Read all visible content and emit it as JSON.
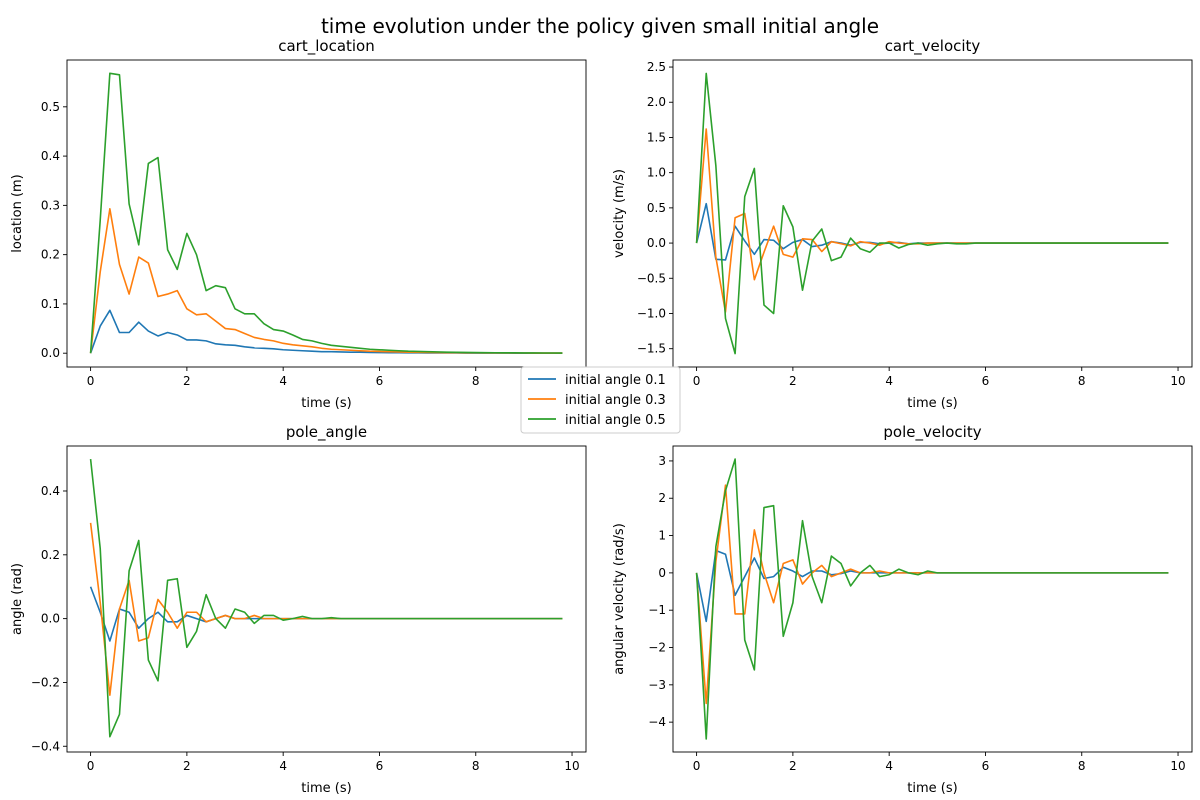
{
  "figure": {
    "title": "time evolution under the policy given small initial angle"
  },
  "colors": {
    "initial angle 0.1": "#1f77b4",
    "initial angle 0.3": "#ff7f0e",
    "initial angle 0.5": "#2ca02c"
  },
  "legend": {
    "placement": "center",
    "entries": [
      "initial angle 0.1",
      "initial angle 0.3",
      "initial angle 0.5"
    ]
  },
  "chart_data": [
    {
      "type": "line",
      "title": "cart_location",
      "xlabel": "time (s)",
      "ylabel": "location (m)",
      "xlim": [
        -0.49,
        10.29
      ],
      "ylim": [
        -0.028,
        0.595
      ],
      "xticks": [
        0,
        2,
        4,
        6,
        8
      ],
      "xtick_labels": [
        "0",
        "2",
        "4",
        "6",
        "8"
      ],
      "yticks": [
        0.0,
        0.1,
        0.2,
        0.3,
        0.4,
        0.5
      ],
      "ytick_labels": [
        "0.0",
        "0.1",
        "0.2",
        "0.3",
        "0.4",
        "0.5"
      ],
      "x": [
        0,
        0.2,
        0.4,
        0.6,
        0.8,
        1.0,
        1.2,
        1.4,
        1.6,
        1.8,
        2.0,
        2.2,
        2.4,
        2.6,
        2.8,
        3.0,
        3.2,
        3.4,
        3.6,
        3.8,
        4.0,
        4.2,
        4.4,
        4.6,
        4.8,
        5.0,
        5.2,
        5.4,
        5.6,
        5.8,
        6.0,
        6.2,
        6.4,
        6.6,
        6.8,
        7.0,
        7.2,
        7.4,
        7.6,
        7.8,
        8.0,
        8.2,
        8.4,
        8.6,
        8.8,
        9.0,
        9.2,
        9.4,
        9.6,
        9.8
      ],
      "series": [
        {
          "name": "initial angle 0.1",
          "values": [
            0.0,
            0.055,
            0.087,
            0.042,
            0.042,
            0.063,
            0.045,
            0.035,
            0.042,
            0.037,
            0.027,
            0.027,
            0.025,
            0.019,
            0.017,
            0.016,
            0.013,
            0.011,
            0.01,
            0.009,
            0.007,
            0.006,
            0.005,
            0.004,
            0.003,
            0.003,
            0.0025,
            0.002,
            0.002,
            0.0015,
            0.0012,
            0.001,
            0.001,
            0.0008,
            0.0007,
            0.0006,
            0.0005,
            0.0004,
            0.0004,
            0.0003,
            0.0003,
            0.0002,
            0.0002,
            0.0002,
            0.0001,
            0.0001,
            0.0001,
            0.0001,
            0.0001,
            0.0001
          ]
        },
        {
          "name": "initial angle 0.3",
          "values": [
            0.0,
            0.165,
            0.293,
            0.18,
            0.12,
            0.195,
            0.183,
            0.115,
            0.12,
            0.127,
            0.09,
            0.078,
            0.08,
            0.065,
            0.05,
            0.048,
            0.04,
            0.032,
            0.028,
            0.025,
            0.02,
            0.017,
            0.015,
            0.013,
            0.01,
            0.008,
            0.007,
            0.006,
            0.005,
            0.004,
            0.0035,
            0.003,
            0.0025,
            0.002,
            0.0018,
            0.0015,
            0.0013,
            0.0011,
            0.001,
            0.0008,
            0.0007,
            0.0006,
            0.0005,
            0.0005,
            0.0004,
            0.0004,
            0.0003,
            0.0003,
            0.0003,
            0.0002
          ]
        },
        {
          "name": "initial angle 0.5",
          "values": [
            0.0,
            0.27,
            0.568,
            0.565,
            0.303,
            0.22,
            0.385,
            0.397,
            0.21,
            0.17,
            0.243,
            0.2,
            0.127,
            0.137,
            0.133,
            0.09,
            0.08,
            0.08,
            0.06,
            0.048,
            0.045,
            0.037,
            0.028,
            0.025,
            0.02,
            0.016,
            0.014,
            0.012,
            0.01,
            0.008,
            0.007,
            0.006,
            0.005,
            0.004,
            0.0035,
            0.003,
            0.0025,
            0.002,
            0.0018,
            0.0015,
            0.0012,
            0.001,
            0.0009,
            0.0008,
            0.0007,
            0.0006,
            0.0005,
            0.0004,
            0.0004,
            0.0003
          ]
        }
      ]
    },
    {
      "type": "line",
      "title": "cart_velocity",
      "xlabel": "time (s)",
      "ylabel": "velocity (m/s)",
      "xlim": [
        -0.49,
        10.29
      ],
      "ylim": [
        -1.76,
        2.6
      ],
      "xticks": [
        0,
        2,
        4,
        6,
        8,
        10
      ],
      "xtick_labels": [
        "0",
        "2",
        "4",
        "6",
        "8",
        "10"
      ],
      "yticks": [
        -1.5,
        -1.0,
        -0.5,
        0.0,
        0.5,
        1.0,
        1.5,
        2.0,
        2.5
      ],
      "ytick_labels": [
        "−1.5",
        "−1.0",
        "−0.5",
        "0.0",
        "0.5",
        "1.0",
        "1.5",
        "2.0",
        "2.5"
      ],
      "x": [
        0,
        0.2,
        0.4,
        0.6,
        0.8,
        1.0,
        1.2,
        1.4,
        1.6,
        1.8,
        2.0,
        2.2,
        2.4,
        2.6,
        2.8,
        3.0,
        3.2,
        3.4,
        3.6,
        3.8,
        4.0,
        4.2,
        4.4,
        4.6,
        4.8,
        5.0,
        5.2,
        5.4,
        5.6,
        5.8,
        6.0,
        6.2,
        6.4,
        6.6,
        6.8,
        7.0,
        7.2,
        7.4,
        7.6,
        7.8,
        8.0,
        8.2,
        8.4,
        8.6,
        8.8,
        9.0,
        9.2,
        9.4,
        9.6,
        9.8
      ],
      "series": [
        {
          "name": "initial angle 0.1",
          "values": [
            0.0,
            0.56,
            -0.23,
            -0.24,
            0.24,
            0.03,
            -0.16,
            0.05,
            0.04,
            -0.08,
            0.01,
            0.05,
            -0.05,
            -0.03,
            0.02,
            0.0,
            -0.03,
            0.01,
            0.01,
            -0.01,
            0.0,
            0.01,
            -0.01,
            0.0,
            0.0,
            0.0,
            0.0,
            0.0,
            0.0,
            0.0,
            0.0,
            0.0,
            0.0,
            0.0,
            0.0,
            0.0,
            0.0,
            0.0,
            0.0,
            0.0,
            0.0,
            0.0,
            0.0,
            0.0,
            0.0,
            0.0,
            0.0,
            0.0,
            0.0,
            0.0
          ]
        },
        {
          "name": "initial angle 0.3",
          "values": [
            0.0,
            1.62,
            -0.2,
            -0.98,
            0.36,
            0.42,
            -0.52,
            -0.13,
            0.24,
            -0.16,
            -0.2,
            0.06,
            0.05,
            -0.12,
            0.02,
            -0.01,
            -0.04,
            0.02,
            0.0,
            -0.03,
            0.02,
            0.0,
            -0.01,
            -0.01,
            0.0,
            0.0,
            0.0,
            0.0,
            0.0,
            0.0,
            0.0,
            0.0,
            0.0,
            0.0,
            0.0,
            0.0,
            0.0,
            0.0,
            0.0,
            0.0,
            0.0,
            0.0,
            0.0,
            0.0,
            0.0,
            0.0,
            0.0,
            0.0,
            0.0,
            0.0
          ]
        },
        {
          "name": "initial angle 0.5",
          "values": [
            0.0,
            2.41,
            1.1,
            -1.07,
            -1.57,
            0.66,
            1.06,
            -0.88,
            -1.0,
            0.53,
            0.23,
            -0.67,
            0.03,
            0.2,
            -0.25,
            -0.2,
            0.07,
            -0.08,
            -0.13,
            0.0,
            0.0,
            -0.07,
            -0.02,
            0.0,
            -0.03,
            -0.01,
            0.0,
            -0.01,
            -0.01,
            0.0,
            0.0,
            0.0,
            0.0,
            0.0,
            0.0,
            0.0,
            0.0,
            0.0,
            0.0,
            0.0,
            0.0,
            0.0,
            0.0,
            0.0,
            0.0,
            0.0,
            0.0,
            0.0,
            0.0,
            0.0
          ]
        }
      ]
    },
    {
      "type": "line",
      "title": "pole_angle",
      "xlabel": "time (s)",
      "ylabel": "angle (rad)",
      "xlim": [
        -0.49,
        10.29
      ],
      "ylim": [
        -0.418,
        0.541
      ],
      "xticks": [
        0,
        2,
        4,
        6,
        8,
        10
      ],
      "xtick_labels": [
        "0",
        "2",
        "4",
        "6",
        "8",
        "10"
      ],
      "yticks": [
        -0.4,
        -0.2,
        0.0,
        0.2,
        0.4
      ],
      "ytick_labels": [
        "−0.4",
        "−0.2",
        "0.0",
        "0.2",
        "0.4"
      ],
      "x": [
        0,
        0.2,
        0.4,
        0.6,
        0.8,
        1.0,
        1.2,
        1.4,
        1.6,
        1.8,
        2.0,
        2.2,
        2.4,
        2.6,
        2.8,
        3.0,
        3.2,
        3.4,
        3.6,
        3.8,
        4.0,
        4.2,
        4.4,
        4.6,
        4.8,
        5.0,
        5.2,
        5.4,
        5.6,
        5.8,
        6.0,
        6.2,
        6.4,
        6.6,
        6.8,
        7.0,
        7.2,
        7.4,
        7.6,
        7.8,
        8.0,
        8.2,
        8.4,
        8.6,
        8.8,
        9.0,
        9.2,
        9.4,
        9.6,
        9.8
      ],
      "series": [
        {
          "name": "initial angle 0.1",
          "values": [
            0.1,
            0.02,
            -0.07,
            0.03,
            0.02,
            -0.03,
            0.0,
            0.02,
            -0.01,
            -0.01,
            0.01,
            0.0,
            -0.01,
            0.0,
            0.01,
            0.0,
            0.0,
            0.0,
            0.0,
            0.0,
            0.0,
            0.0,
            0.0,
            0.0,
            0.0,
            0.0,
            0.0,
            0.0,
            0.0,
            0.0,
            0.0,
            0.0,
            0.0,
            0.0,
            0.0,
            0.0,
            0.0,
            0.0,
            0.0,
            0.0,
            0.0,
            0.0,
            0.0,
            0.0,
            0.0,
            0.0,
            0.0,
            0.0,
            0.0,
            0.0
          ]
        },
        {
          "name": "initial angle 0.3",
          "values": [
            0.3,
            0.05,
            -0.24,
            0.03,
            0.12,
            -0.07,
            -0.06,
            0.06,
            0.02,
            -0.03,
            0.02,
            0.02,
            -0.01,
            0.0,
            0.01,
            0.0,
            0.0,
            0.01,
            0.0,
            0.0,
            0.0,
            0.0,
            0.0,
            0.0,
            0.0,
            0.0,
            0.0,
            0.0,
            0.0,
            0.0,
            0.0,
            0.0,
            0.0,
            0.0,
            0.0,
            0.0,
            0.0,
            0.0,
            0.0,
            0.0,
            0.0,
            0.0,
            0.0,
            0.0,
            0.0,
            0.0,
            0.0,
            0.0,
            0.0,
            0.0
          ]
        },
        {
          "name": "initial angle 0.5",
          "values": [
            0.5,
            0.22,
            -0.37,
            -0.3,
            0.15,
            0.245,
            -0.13,
            -0.195,
            0.12,
            0.125,
            -0.09,
            -0.04,
            0.075,
            0.0,
            -0.03,
            0.03,
            0.02,
            -0.015,
            0.01,
            0.01,
            -0.005,
            0.0,
            0.007,
            0.0,
            0.0,
            0.003,
            0.0,
            0.0,
            0.0,
            0.0,
            0.0,
            0.0,
            0.0,
            0.0,
            0.0,
            0.0,
            0.0,
            0.0,
            0.0,
            0.0,
            0.0,
            0.0,
            0.0,
            0.0,
            0.0,
            0.0,
            0.0,
            0.0,
            0.0,
            0.0
          ]
        }
      ]
    },
    {
      "type": "line",
      "title": "pole_velocity",
      "xlabel": "time (s)",
      "ylabel": "angular velocity (rad/s)",
      "xlim": [
        -0.49,
        10.29
      ],
      "ylim": [
        -4.8,
        3.4
      ],
      "xticks": [
        0,
        2,
        4,
        6,
        8,
        10
      ],
      "xtick_labels": [
        "0",
        "2",
        "4",
        "6",
        "8",
        "10"
      ],
      "yticks": [
        -4,
        -3,
        -2,
        -1,
        0,
        1,
        2,
        3
      ],
      "ytick_labels": [
        "−4",
        "−3",
        "−2",
        "−1",
        "0",
        "1",
        "2",
        "3"
      ],
      "x": [
        0,
        0.2,
        0.4,
        0.6,
        0.8,
        1.0,
        1.2,
        1.4,
        1.6,
        1.8,
        2.0,
        2.2,
        2.4,
        2.6,
        2.8,
        3.0,
        3.2,
        3.4,
        3.6,
        3.8,
        4.0,
        4.2,
        4.4,
        4.6,
        4.8,
        5.0,
        5.2,
        5.4,
        5.6,
        5.8,
        6.0,
        6.2,
        6.4,
        6.6,
        6.8,
        7.0,
        7.2,
        7.4,
        7.6,
        7.8,
        8.0,
        8.2,
        8.4,
        8.6,
        8.8,
        9.0,
        9.2,
        9.4,
        9.6,
        9.8
      ],
      "series": [
        {
          "name": "initial angle 0.1",
          "values": [
            0.0,
            -1.3,
            0.6,
            0.5,
            -0.6,
            -0.1,
            0.4,
            -0.15,
            -0.1,
            0.15,
            0.05,
            -0.1,
            0.05,
            0.05,
            -0.05,
            -0.02,
            0.05,
            0.0,
            0.0,
            0.0,
            0.0,
            0.0,
            0.0,
            0.0,
            0.0,
            0.0,
            0.0,
            0.0,
            0.0,
            0.0,
            0.0,
            0.0,
            0.0,
            0.0,
            0.0,
            0.0,
            0.0,
            0.0,
            0.0,
            0.0,
            0.0,
            0.0,
            0.0,
            0.0,
            0.0,
            0.0,
            0.0,
            0.0,
            0.0,
            0.0
          ]
        },
        {
          "name": "initial angle 0.3",
          "values": [
            0.0,
            -3.5,
            0.3,
            2.35,
            -1.1,
            -1.1,
            1.15,
            0.0,
            -0.8,
            0.25,
            0.35,
            -0.3,
            0.0,
            0.2,
            -0.1,
            0.0,
            0.1,
            0.0,
            0.0,
            0.05,
            0.0,
            0.0,
            0.0,
            0.0,
            0.0,
            0.0,
            0.0,
            0.0,
            0.0,
            0.0,
            0.0,
            0.0,
            0.0,
            0.0,
            0.0,
            0.0,
            0.0,
            0.0,
            0.0,
            0.0,
            0.0,
            0.0,
            0.0,
            0.0,
            0.0,
            0.0,
            0.0,
            0.0,
            0.0,
            0.0
          ]
        },
        {
          "name": "initial angle 0.5",
          "values": [
            0.0,
            -4.45,
            0.7,
            2.2,
            3.05,
            -1.8,
            -2.6,
            1.75,
            1.8,
            -1.7,
            -0.8,
            1.4,
            -0.1,
            -0.8,
            0.45,
            0.25,
            -0.35,
            0.0,
            0.2,
            -0.1,
            -0.05,
            0.1,
            0.0,
            -0.05,
            0.05,
            0.0,
            0.0,
            0.0,
            0.0,
            0.0,
            0.0,
            0.0,
            0.0,
            0.0,
            0.0,
            0.0,
            0.0,
            0.0,
            0.0,
            0.0,
            0.0,
            0.0,
            0.0,
            0.0,
            0.0,
            0.0,
            0.0,
            0.0,
            0.0,
            0.0
          ]
        }
      ]
    }
  ]
}
